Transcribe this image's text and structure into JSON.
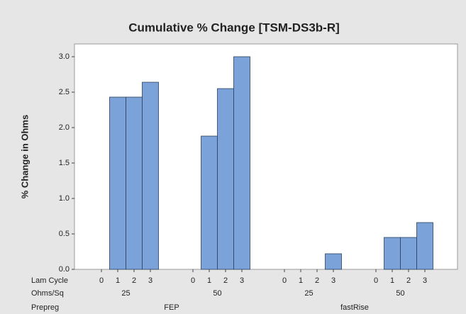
{
  "chart_data": {
    "type": "bar",
    "title": "Cumulative % Change [TSM-DS3b-R]",
    "y_label": "% Change in Ohms",
    "levels": [
      {
        "name": "Lam Cycle",
        "labels": [
          "0",
          "1",
          "2",
          "3",
          "0",
          "1",
          "2",
          "3",
          "0",
          "1",
          "2",
          "3",
          "0",
          "1",
          "2",
          "3"
        ]
      },
      {
        "name": "Ohms/Sq",
        "labels": [
          "25",
          "50",
          "25",
          "50"
        ]
      },
      {
        "name": "Prepreg",
        "labels": [
          "FEP",
          "fastRise"
        ]
      }
    ],
    "values": [
      0,
      2.43,
      2.43,
      2.64,
      0,
      1.88,
      2.55,
      3.0,
      0,
      0,
      0,
      0.22,
      0,
      0.45,
      0.45,
      0.66
    ],
    "color": "#7ba3d9",
    "ylim": [
      0,
      3.18
    ],
    "yticks": [
      {
        "value": 0,
        "label": "0.0"
      },
      0.5,
      {
        "value": 1,
        "label": "1.0"
      },
      1.5,
      {
        "value": 2,
        "label": "2.0"
      },
      2.5,
      {
        "value": 3,
        "label": "3.0"
      }
    ]
  }
}
